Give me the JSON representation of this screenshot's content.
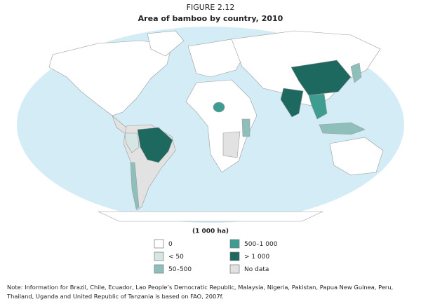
{
  "header": {
    "figure": "FIGURE 2.12",
    "title": "Area of bamboo by country, 2010"
  },
  "legend": {
    "title": "(1 000 ha)",
    "items": [
      {
        "label": "0",
        "color": "#ffffff"
      },
      {
        "label": "< 50",
        "color": "#d5e6e5"
      },
      {
        "label": "50–500",
        "color": "#8fbfba"
      },
      {
        "label": "500–1 000",
        "color": "#3f9c91"
      },
      {
        "label": "> 1 000",
        "color": "#1d6960"
      },
      {
        "label": "No data",
        "color": "#e2e2e2"
      }
    ]
  },
  "note": "Note: Information for Brazil, Chile, Ecuador, Lao People’s Democratic Republic, Malaysia, Nigeria, Pakistan, Papua New Guinea, Peru, Thailand, Uganda and United Republic of Tanzania is based on FAO, 2007f."
}
